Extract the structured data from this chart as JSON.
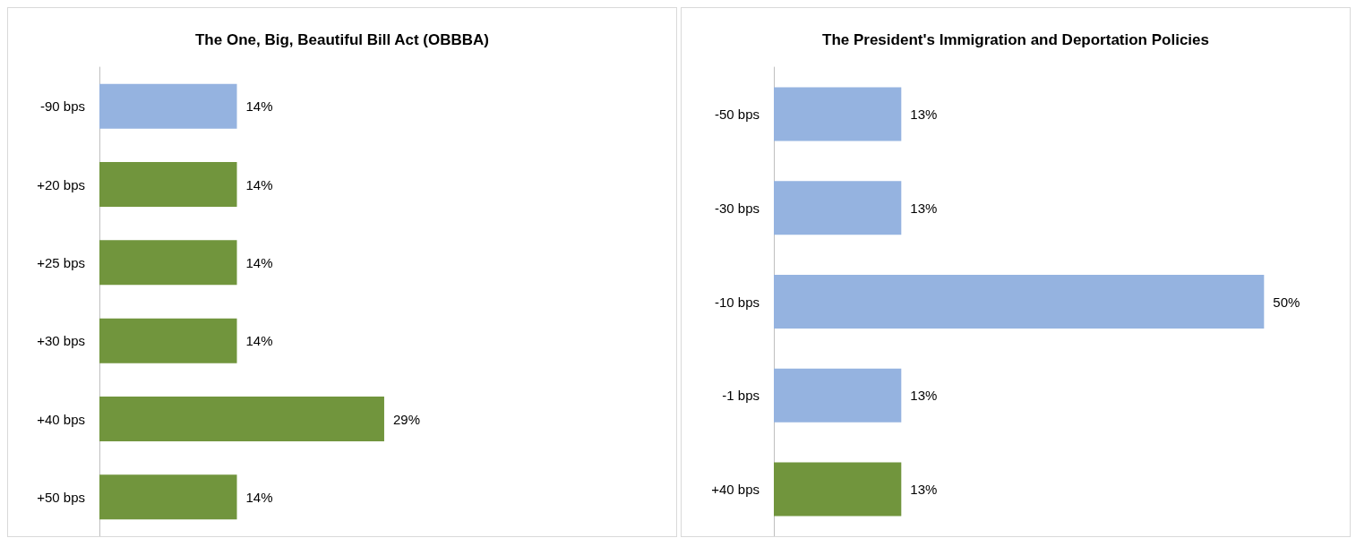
{
  "chart_data": [
    {
      "type": "bar",
      "title": "The One, Big, Beautiful Bill Act (OBBBA)",
      "orientation": "horizontal",
      "categories": [
        "-90 bps",
        "+20 bps",
        "+25 bps",
        "+30 bps",
        "+40 bps",
        "+50 bps"
      ],
      "values": [
        14,
        14,
        14,
        14,
        29,
        14
      ],
      "colors": [
        "#95b3e0",
        "#71953d",
        "#71953d",
        "#71953d",
        "#71953d",
        "#71953d"
      ],
      "value_labels": [
        "14%",
        "14%",
        "14%",
        "14%",
        "29%",
        "14%"
      ]
    },
    {
      "type": "bar",
      "title": "The President's Immigration and Deportation Policies",
      "orientation": "horizontal",
      "categories": [
        "-50 bps",
        "-30 bps",
        "-10 bps",
        "-1 bps",
        "+40 bps"
      ],
      "values": [
        13,
        13,
        50,
        13,
        13
      ],
      "colors": [
        "#95b3e0",
        "#95b3e0",
        "#95b3e0",
        "#95b3e0",
        "#71953d"
      ],
      "value_labels": [
        "13%",
        "13%",
        "50%",
        "13%",
        "13%"
      ]
    }
  ]
}
